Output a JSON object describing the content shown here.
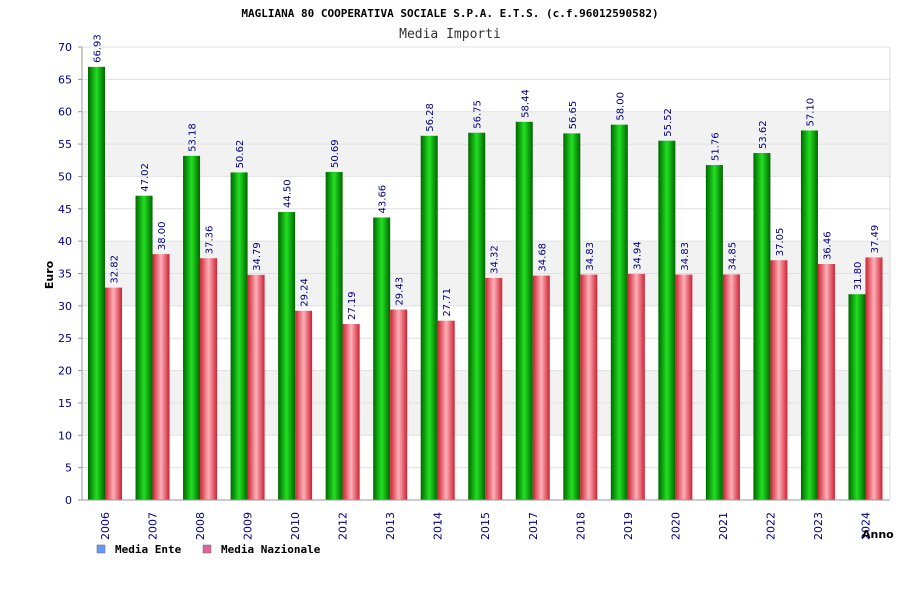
{
  "chart_data": {
    "type": "bar",
    "title": "MAGLIANA 80 COOPERATIVA SOCIALE S.P.A. E.T.S. (c.f.96012590582)",
    "subtitle": "Media Importi",
    "xlabel": "Anno",
    "ylabel": "Euro",
    "ylim": [
      0,
      70
    ],
    "yticks": [
      0,
      5,
      10,
      15,
      20,
      25,
      30,
      35,
      40,
      45,
      50,
      55,
      60,
      65,
      70
    ],
    "grid": true,
    "legend_position": "bottom-left",
    "categories": [
      "2006",
      "2007",
      "2008",
      "2009",
      "2010",
      "2012",
      "2013",
      "2014",
      "2015",
      "2017",
      "2018",
      "2019",
      "2020",
      "2021",
      "2022",
      "2023",
      "2024"
    ],
    "series": [
      {
        "name": "Media Ente",
        "color": "#00c000",
        "legend_color": "#6699ff",
        "values": [
          66.93,
          47.02,
          53.18,
          50.62,
          44.5,
          50.69,
          43.66,
          56.28,
          56.75,
          58.44,
          56.65,
          58.0,
          55.52,
          51.76,
          53.62,
          57.1,
          31.8
        ],
        "labels": [
          "66.93",
          "47.02",
          "53.18",
          "50.62",
          "44.50",
          "50.69",
          "43.66",
          "56.28",
          "56.75",
          "58.44",
          "56.65",
          "58.00",
          "55.52",
          "51.76",
          "53.62",
          "57.10",
          "31.80"
        ]
      },
      {
        "name": "Media Nazionale",
        "color": "#ee3344",
        "legend_color": "#dd6699",
        "values": [
          32.82,
          38.0,
          37.36,
          34.79,
          29.24,
          27.19,
          29.43,
          27.71,
          34.32,
          34.68,
          34.83,
          34.94,
          34.83,
          34.85,
          37.05,
          36.46,
          37.49
        ],
        "labels": [
          "32.82",
          "38.00",
          "37.36",
          "34.79",
          "29.24",
          "27.19",
          "29.43",
          "27.71",
          "34.32",
          "34.68",
          "34.83",
          "34.94",
          "34.83",
          "34.85",
          "37.05",
          "36.46",
          "37.49"
        ]
      }
    ]
  }
}
